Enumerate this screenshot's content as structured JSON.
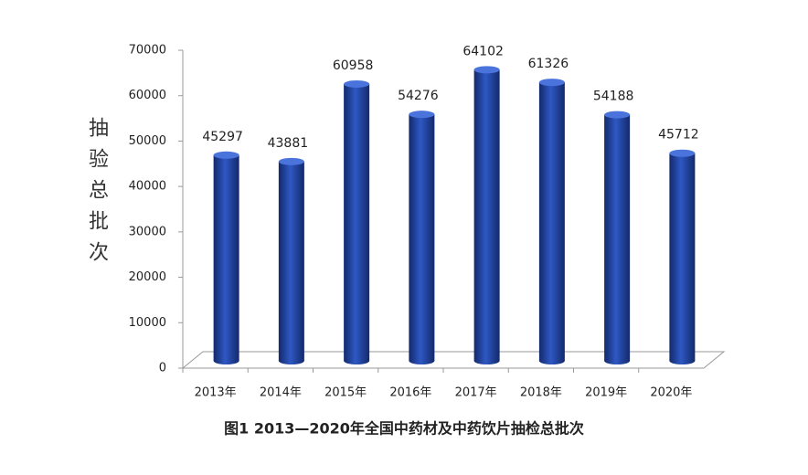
{
  "chart_data": {
    "type": "bar",
    "title": "图1 2013—2020年全国中药材及中药饮片抽检总批次",
    "y_label": "抽验总批次",
    "categories": [
      "2013年",
      "2014年",
      "2015年",
      "2016年",
      "2017年",
      "2018年",
      "2019年",
      "2020年"
    ],
    "values": [
      45297,
      43881,
      60958,
      54276,
      64102,
      61326,
      54188,
      45712
    ],
    "color": "#2e58c4",
    "ylim": [
      0,
      70000
    ],
    "yticks": [
      0,
      10000,
      20000,
      30000,
      40000,
      50000,
      60000,
      70000
    ],
    "grid": false
  }
}
